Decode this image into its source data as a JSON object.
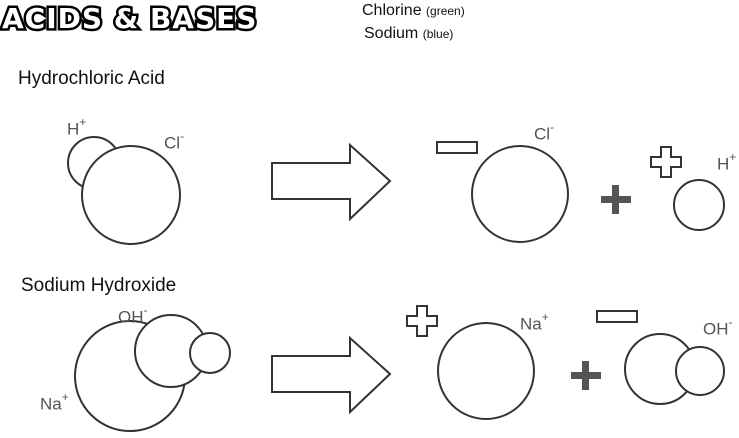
{
  "title": "ACIDS & BASES",
  "legend": {
    "line1": {
      "name": "Chlorine",
      "note": "(green)"
    },
    "line2": {
      "name": "Sodium",
      "note": "(blue)"
    }
  },
  "sections": {
    "acid": {
      "label": "Hydrochloric Acid",
      "h_label": "H",
      "h_charge": "+",
      "cl_label": "Cl",
      "cl_charge": "-",
      "prod_cl_label": "Cl",
      "prod_cl_charge": "-",
      "prod_h_label": "H",
      "prod_h_charge": "+"
    },
    "base": {
      "label": "Sodium Hydroxide",
      "oh_label": "OH",
      "oh_charge": "-",
      "na_label": "Na",
      "na_charge": "+",
      "prod_na_label": "Na",
      "prod_na_charge": "+",
      "prod_oh_label": "OH",
      "prod_oh_charge": "-"
    }
  }
}
